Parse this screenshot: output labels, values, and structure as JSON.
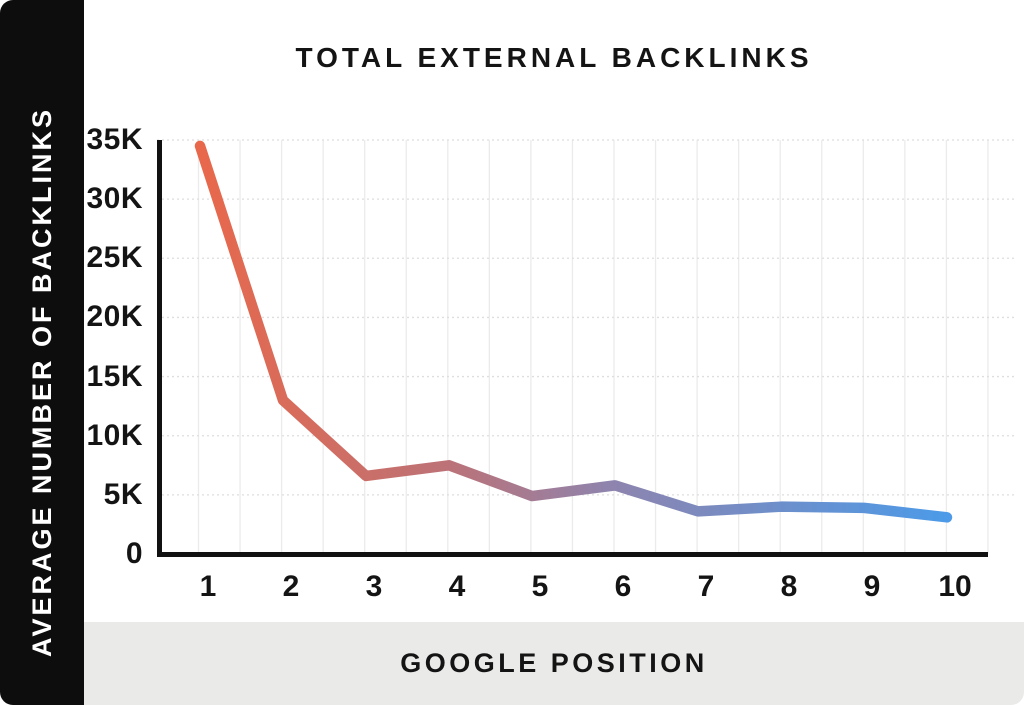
{
  "chart_data": {
    "type": "line",
    "title": "TOTAL EXTERNAL BACKLINKS",
    "xlabel": "GOOGLE POSITION",
    "ylabel": "AVERAGE NUMBER OF BACKLINKS",
    "categories": [
      "1",
      "2",
      "3",
      "4",
      "5",
      "6",
      "7",
      "8",
      "9",
      "10"
    ],
    "series": [
      {
        "name": "average-backlinks-by-position",
        "values": [
          34500,
          13000,
          6600,
          7500,
          4900,
          5800,
          3600,
          4000,
          3900,
          3100
        ]
      }
    ],
    "ylim": [
      0,
      35000
    ],
    "y_tick_labels": [
      "35K",
      "30K",
      "25K",
      "20K",
      "15K",
      "10K",
      "5K",
      "0"
    ],
    "y_tick_values": [
      35000,
      30000,
      25000,
      20000,
      15000,
      10000,
      5000,
      0
    ],
    "grid": true,
    "legend_position": "none",
    "line_gradient": {
      "stops": [
        "#E8684B",
        "#BC7277",
        "#8E84AE",
        "#4C9AE8"
      ],
      "offsets": [
        0,
        0.33,
        0.55,
        1
      ]
    }
  },
  "colors": {
    "sidebar_bg": "#0D0D0D",
    "sidebar_text": "#FFFFFF",
    "footer_bg": "#EAEAE8",
    "text": "#141414",
    "axis": "#111111",
    "grid_horizontal": "#DEDEDE",
    "grid_vertical": "#EBEBEB"
  }
}
